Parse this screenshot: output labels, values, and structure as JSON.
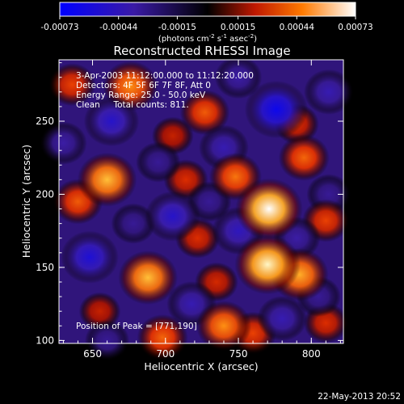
{
  "chart_data": {
    "type": "heatmap",
    "title": "Reconstructed RHESSI Image",
    "xlabel": "Heliocentric X (arcsec)",
    "ylabel": "Heliocentric Y (arcsec)",
    "xlim": [
      627,
      822
    ],
    "ylim": [
      98,
      292
    ],
    "x_ticks": [
      "650",
      "700",
      "750",
      "800"
    ],
    "y_ticks": [
      "100",
      "150",
      "200",
      "250"
    ],
    "colorbar": {
      "min": -0.00073,
      "max": 0.00073,
      "ticks": [
        "-0.00073",
        "-0.00044",
        "-0.00015",
        "0.00015",
        "0.00044",
        "0.00073"
      ],
      "unit_label": "(photons cm",
      "unit_exp1": "-2",
      "unit_mid": " s",
      "unit_exp2": "-1",
      "unit_mid2": " asec",
      "unit_exp3": "-2",
      "unit_end": ")"
    },
    "annotations": [
      "3-Apr-2003 11:12:00.000 to 11:12:20.000",
      "Detectors: 4F 5F 6F 7F 8F, Att 0",
      "Energy Range: 25.0 - 50.0 keV",
      "Clean     Total counts: 811."
    ],
    "peak_label": "Position of Peak = [771,190]",
    "peak": {
      "x": 771,
      "y": 190
    },
    "sources": [
      {
        "x": 771,
        "y": 190,
        "value": 0.00073
      },
      {
        "x": 770,
        "y": 152,
        "value": 0.0007
      },
      {
        "x": 676,
        "y": 274,
        "value": 0.0005
      },
      {
        "x": 660,
        "y": 210,
        "value": 0.00058
      },
      {
        "x": 688,
        "y": 143,
        "value": 0.00058
      },
      {
        "x": 640,
        "y": 195,
        "value": 0.0004
      },
      {
        "x": 636,
        "y": 275,
        "value": 0.00035
      },
      {
        "x": 698,
        "y": 102,
        "value": 0.00042
      },
      {
        "x": 740,
        "y": 110,
        "value": 0.0005
      },
      {
        "x": 792,
        "y": 145,
        "value": 0.00055
      },
      {
        "x": 795,
        "y": 225,
        "value": 0.00042
      },
      {
        "x": 810,
        "y": 182,
        "value": 0.00035
      },
      {
        "x": 748,
        "y": 212,
        "value": 0.00045
      },
      {
        "x": 714,
        "y": 210,
        "value": 0.0003
      },
      {
        "x": 727,
        "y": 256,
        "value": 0.0004
      },
      {
        "x": 790,
        "y": 248,
        "value": 0.0003
      },
      {
        "x": 760,
        "y": 105,
        "value": 0.00035
      },
      {
        "x": 655,
        "y": 120,
        "value": 0.00025
      },
      {
        "x": 722,
        "y": 170,
        "value": 0.0003
      },
      {
        "x": 735,
        "y": 140,
        "value": 0.00028
      },
      {
        "x": 810,
        "y": 112,
        "value": 0.0003
      },
      {
        "x": 705,
        "y": 240,
        "value": 0.00025
      },
      {
        "x": 780,
        "y": 115,
        "value": -0.0004
      },
      {
        "x": 776,
        "y": 258,
        "value": -0.00065
      },
      {
        "x": 648,
        "y": 157,
        "value": -0.00055
      },
      {
        "x": 663,
        "y": 250,
        "value": -0.0005
      },
      {
        "x": 705,
        "y": 185,
        "value": -0.0005
      },
      {
        "x": 750,
        "y": 175,
        "value": -0.00045
      },
      {
        "x": 812,
        "y": 270,
        "value": -0.0004
      },
      {
        "x": 740,
        "y": 232,
        "value": -0.0004
      },
      {
        "x": 718,
        "y": 125,
        "value": -0.0004
      },
      {
        "x": 660,
        "y": 100,
        "value": -0.0003
      },
      {
        "x": 750,
        "y": 280,
        "value": -0.00035
      },
      {
        "x": 630,
        "y": 235,
        "value": -0.00035
      },
      {
        "x": 695,
        "y": 222,
        "value": -0.0003
      },
      {
        "x": 812,
        "y": 200,
        "value": -0.0003
      },
      {
        "x": 790,
        "y": 170,
        "value": -0.00035
      },
      {
        "x": 730,
        "y": 195,
        "value": -0.0003
      },
      {
        "x": 678,
        "y": 180,
        "value": -0.0003
      },
      {
        "x": 805,
        "y": 130,
        "value": -0.0003
      }
    ]
  },
  "timestamp": "22-May-2013 20:52"
}
